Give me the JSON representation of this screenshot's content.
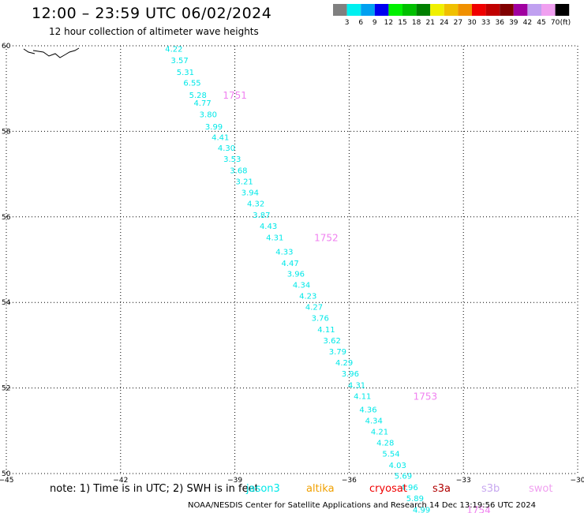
{
  "header": {
    "title": "12:00 – 23:59 UTC 06/02/2024",
    "subtitle": "12 hour collection of altimeter wave heights"
  },
  "colorbar": {
    "colors": [
      "#808080",
      "#00f0f0",
      "#00a0f0",
      "#0000f0",
      "#00f000",
      "#00c000",
      "#008000",
      "#f0f000",
      "#f0c000",
      "#f09000",
      "#f00000",
      "#c00000",
      "#800000",
      "#a000a0",
      "#c0a0f0",
      "#f0a0f0",
      "#000000"
    ],
    "labels": [
      "3",
      "6",
      "9",
      "12",
      "15",
      "18",
      "21",
      "24",
      "27",
      "30",
      "33",
      "36",
      "39",
      "42",
      "45",
      "70"
    ],
    "unit": "(ft)"
  },
  "chart_data": {
    "type": "scatter",
    "xlim": [
      -45,
      -30
    ],
    "ylim": [
      50,
      60
    ],
    "x_ticks": [
      -45,
      -42,
      -39,
      -36,
      -33,
      -30
    ],
    "y_ticks": [
      50,
      52,
      54,
      56,
      58,
      60
    ],
    "x_tick_labels": [
      "−45",
      "−42",
      "−39",
      "−36",
      "−33",
      "−30"
    ],
    "y_tick_labels": [
      "50",
      "52",
      "54",
      "56",
      "58",
      "60"
    ],
    "grid": true,
    "series": [
      {
        "name": "jason3",
        "color": "#00e8e8",
        "points": [
          {
            "lon": -40.6,
            "lat": 59.94,
            "swh": "4.22"
          },
          {
            "lon": -40.45,
            "lat": 59.67,
            "swh": "3.57"
          },
          {
            "lon": -40.3,
            "lat": 59.39,
            "swh": "5.31"
          },
          {
            "lon": -40.12,
            "lat": 59.14,
            "swh": "6.55"
          },
          {
            "lon": -39.97,
            "lat": 58.86,
            "swh": "5.28"
          },
          {
            "lon": -39.85,
            "lat": 58.67,
            "swh": "4.77"
          },
          {
            "lon": -39.7,
            "lat": 58.4,
            "swh": "3.80"
          },
          {
            "lon": -39.55,
            "lat": 58.12,
            "swh": "3.99"
          },
          {
            "lon": -39.38,
            "lat": 57.87,
            "swh": "4.41"
          },
          {
            "lon": -39.22,
            "lat": 57.62,
            "swh": "4.30"
          },
          {
            "lon": -39.07,
            "lat": 57.36,
            "swh": "3.53"
          },
          {
            "lon": -38.9,
            "lat": 57.09,
            "swh": "3.68"
          },
          {
            "lon": -38.75,
            "lat": 56.84,
            "swh": "3.21"
          },
          {
            "lon": -38.6,
            "lat": 56.58,
            "swh": "3.94"
          },
          {
            "lon": -38.45,
            "lat": 56.32,
            "swh": "4.32"
          },
          {
            "lon": -38.3,
            "lat": 56.05,
            "swh": "3.87"
          },
          {
            "lon": -38.12,
            "lat": 55.79,
            "swh": "4.43"
          },
          {
            "lon": -37.95,
            "lat": 55.53,
            "swh": "4.31"
          },
          {
            "lon": -37.7,
            "lat": 55.19,
            "swh": "4.33"
          },
          {
            "lon": -37.55,
            "lat": 54.93,
            "swh": "4.47"
          },
          {
            "lon": -37.4,
            "lat": 54.68,
            "swh": "3.96"
          },
          {
            "lon": -37.25,
            "lat": 54.42,
            "swh": "4.34"
          },
          {
            "lon": -37.08,
            "lat": 54.16,
            "swh": "4.23"
          },
          {
            "lon": -36.92,
            "lat": 53.9,
            "swh": "4.27"
          },
          {
            "lon": -36.76,
            "lat": 53.64,
            "swh": "3.76"
          },
          {
            "lon": -36.6,
            "lat": 53.38,
            "swh": "4.11"
          },
          {
            "lon": -36.45,
            "lat": 53.12,
            "swh": "3.62"
          },
          {
            "lon": -36.3,
            "lat": 52.86,
            "swh": "3.79"
          },
          {
            "lon": -36.13,
            "lat": 52.6,
            "swh": "4.29"
          },
          {
            "lon": -35.97,
            "lat": 52.34,
            "swh": "3.96"
          },
          {
            "lon": -35.8,
            "lat": 52.08,
            "swh": "4.31"
          },
          {
            "lon": -35.65,
            "lat": 51.82,
            "swh": "4.11"
          },
          {
            "lon": -35.5,
            "lat": 51.5,
            "swh": "4.36"
          },
          {
            "lon": -35.35,
            "lat": 51.25,
            "swh": "4.34"
          },
          {
            "lon": -35.2,
            "lat": 50.99,
            "swh": "4.21"
          },
          {
            "lon": -35.05,
            "lat": 50.73,
            "swh": "4.28"
          },
          {
            "lon": -34.9,
            "lat": 50.47,
            "swh": "5.54"
          },
          {
            "lon": -34.73,
            "lat": 50.2,
            "swh": "4.03"
          },
          {
            "lon": -34.58,
            "lat": 49.95,
            "swh": "5.69"
          },
          {
            "lon": -34.42,
            "lat": 49.69,
            "swh": "4.96"
          },
          {
            "lon": -34.27,
            "lat": 49.43,
            "swh": "5.89"
          },
          {
            "lon": -34.1,
            "lat": 49.16,
            "swh": "4.99"
          }
        ]
      }
    ],
    "time_labels": [
      {
        "lon": -39.0,
        "lat": 58.86,
        "text": "1751"
      },
      {
        "lon": -36.6,
        "lat": 55.53,
        "text": "1752"
      },
      {
        "lon": -34.0,
        "lat": 51.82,
        "text": "1753"
      },
      {
        "lon": -32.6,
        "lat": 49.16,
        "text": "1754"
      }
    ],
    "time_label_color": "#f080f0"
  },
  "footer": {
    "note": "note:  1) Time is in UTC;  2) SWH is in feet",
    "satellites": [
      {
        "name": "jason3",
        "color": "#00e8e8"
      },
      {
        "name": "altika",
        "color": "#f0a000"
      },
      {
        "name": "cryosat",
        "color": "#f00000"
      },
      {
        "name": "s3a",
        "color": "#b00000"
      },
      {
        "name": "s3b",
        "color": "#c8a8f0"
      },
      {
        "name": "swot",
        "color": "#f0a0f0"
      }
    ],
    "credit": "NOAA/NESDIS Center for Satellite Applications and Research    14 Dec 13:19:56 UTC 2024"
  }
}
